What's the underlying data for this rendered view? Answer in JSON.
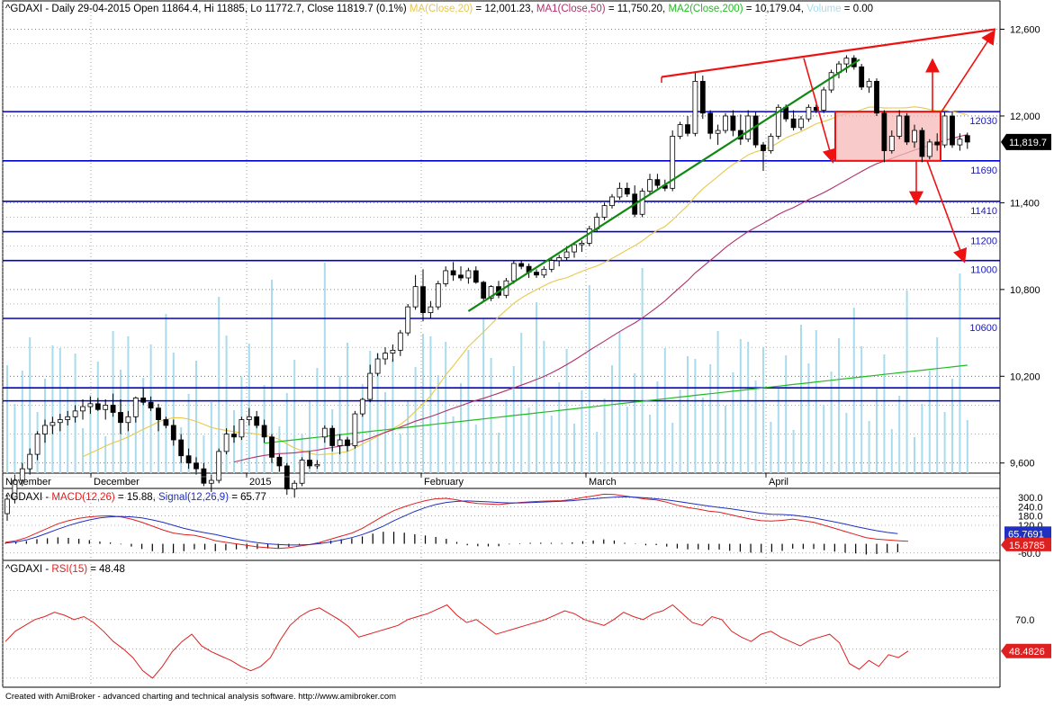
{
  "price_pane": {
    "symbol": "^GDAXI",
    "interval": "Daily",
    "date": "29-04-2015",
    "ohlc_text": "Open 11864.4, Hi 11885, Lo 11772.7, Close 11819.7 (0.1%)",
    "ma20_label": "MA(Close,20)",
    "ma20_value": "= 12,001.23,",
    "ma50_label": "MA1(Close,50)",
    "ma50_value": "= 11,750.20,",
    "ma200_label": "MA2(Close,200)",
    "ma200_value": "= 10,179.04,",
    "volume_label": "Volume",
    "volume_value": "= 0.00",
    "last_price_tag": "11,819.7",
    "y_ticks": [
      "12,600",
      "12,000",
      "11,400",
      "10,800",
      "10,200",
      "9,600"
    ],
    "x_labels": [
      "November",
      "December",
      "2015",
      "February",
      "March",
      "April"
    ],
    "level_labels": [
      "12030",
      "11690",
      "11410",
      "11200",
      "11000",
      "10600"
    ]
  },
  "macd_pane": {
    "title_prefix": "^GDAXI -",
    "macd_label": "MACD(12,26)",
    "macd_value": "= 15.88,",
    "signal_label": "Signal(12,26,9)",
    "signal_value": "= 65.77",
    "y_ticks": [
      "300.0",
      "240.0",
      "180.0",
      "120.0",
      "-60.0"
    ],
    "signal_tag": "65.7691",
    "macd_tag": "15.8785"
  },
  "rsi_pane": {
    "title_prefix": "^GDAXI -",
    "rsi_label": "RSI(15)",
    "rsi_value": "= 48.48",
    "y_ticks": [
      "70.0"
    ],
    "rsi_tag": "48.4826"
  },
  "footer": "Created with AmiBroker - advanced charting and technical analysis software. http://www.amibroker.com",
  "colors": {
    "ma20": "#e8c84a",
    "ma50": "#b0306a",
    "ma200": "#22bb22",
    "macd": "#dd2020",
    "signal": "#2030c0",
    "rsi": "#dd2020",
    "level_lines": "#0000cc",
    "volume": "#a8dcec",
    "trend_green": "#118811",
    "trend_red": "#ee1111",
    "box_fill": "#f6b8b8"
  },
  "chart_data": [
    {
      "type": "candlestick",
      "title": "^GDAXI - Daily",
      "ylim": [
        9530,
        12740
      ],
      "y_scale": "linear",
      "grid": "dotted horizontal and vertical",
      "candles": [
        [
          9250,
          9380,
          9200,
          9350
        ],
        [
          9350,
          9520,
          9320,
          9480
        ],
        [
          9480,
          9600,
          9440,
          9560
        ],
        [
          9560,
          9700,
          9520,
          9660
        ],
        [
          9660,
          9820,
          9620,
          9800
        ],
        [
          9800,
          9900,
          9740,
          9860
        ],
        [
          9860,
          9920,
          9800,
          9880
        ],
        [
          9880,
          9940,
          9820,
          9900
        ],
        [
          9900,
          9960,
          9860,
          9920
        ],
        [
          9920,
          10000,
          9880,
          9960
        ],
        [
          9960,
          10040,
          9900,
          9990
        ],
        [
          9990,
          10060,
          9940,
          10010
        ],
        [
          10010,
          10050,
          9960,
          9970
        ],
        [
          9970,
          10040,
          9900,
          10000
        ],
        [
          10000,
          10080,
          9920,
          9950
        ],
        [
          9950,
          10040,
          9800,
          9880
        ],
        [
          9880,
          9960,
          9820,
          9920
        ],
        [
          9920,
          10060,
          9880,
          10050
        ],
        [
          10050,
          10120,
          10000,
          10020
        ],
        [
          10020,
          10060,
          9960,
          9980
        ],
        [
          9980,
          10010,
          9820,
          9900
        ],
        [
          9900,
          9920,
          9840,
          9860
        ],
        [
          9860,
          9900,
          9720,
          9760
        ],
        [
          9760,
          9800,
          9600,
          9650
        ],
        [
          9650,
          9700,
          9560,
          9600
        ],
        [
          9600,
          9640,
          9520,
          9560
        ],
        [
          9560,
          9600,
          9440,
          9460
        ],
        [
          9460,
          9520,
          9400,
          9480
        ],
        [
          9480,
          9700,
          9460,
          9680
        ],
        [
          9680,
          9840,
          9660,
          9800
        ],
        [
          9800,
          9860,
          9740,
          9780
        ],
        [
          9780,
          9920,
          9760,
          9900
        ],
        [
          9900,
          9980,
          9860,
          9920
        ],
        [
          9920,
          9960,
          9840,
          9860
        ],
        [
          9860,
          9900,
          9740,
          9780
        ],
        [
          9780,
          9800,
          9600,
          9640
        ],
        [
          9640,
          9660,
          9540,
          9580
        ],
        [
          9580,
          9600,
          9380,
          9420
        ],
        [
          9420,
          9480,
          9360,
          9460
        ],
        [
          9460,
          9640,
          9440,
          9620
        ],
        [
          9620,
          9680,
          9560,
          9580
        ],
        [
          9580,
          9620,
          9560,
          9590
        ],
        [
          9780,
          9860,
          9740,
          9840
        ],
        [
          9840,
          9860,
          9680,
          9720
        ],
        [
          9720,
          9800,
          9660,
          9760
        ],
        [
          9760,
          9780,
          9680,
          9720
        ],
        [
          9720,
          9960,
          9700,
          9940
        ],
        [
          9940,
          10050,
          9920,
          10040
        ],
        [
          10040,
          10280,
          10020,
          10220
        ],
        [
          10220,
          10360,
          10200,
          10320
        ],
        [
          10320,
          10400,
          10280,
          10360
        ],
        [
          10360,
          10420,
          10300,
          10380
        ],
        [
          10380,
          10520,
          10340,
          10500
        ],
        [
          10500,
          10700,
          10480,
          10680
        ],
        [
          10680,
          10900,
          10660,
          10820
        ],
        [
          10820,
          10940,
          10580,
          10640
        ],
        [
          10640,
          10720,
          10600,
          10680
        ],
        [
          10680,
          10860,
          10660,
          10840
        ],
        [
          10840,
          10960,
          10820,
          10930
        ],
        [
          10930,
          10990,
          10860,
          10900
        ],
        [
          10900,
          10960,
          10860,
          10880
        ],
        [
          10880,
          10950,
          10840,
          10930
        ],
        [
          10930,
          10960,
          10840,
          10850
        ],
        [
          10850,
          10860,
          10720,
          10740
        ],
        [
          10740,
          10830,
          10720,
          10820
        ],
        [
          10820,
          10860,
          10740,
          10760
        ],
        [
          10760,
          10880,
          10740,
          10860
        ],
        [
          10860,
          11000,
          10840,
          10980
        ],
        [
          10980,
          11000,
          10940,
          10960
        ],
        [
          10960,
          10980,
          10880,
          10920
        ],
        [
          10920,
          10940,
          10880,
          10900
        ],
        [
          10900,
          10960,
          10880,
          10940
        ],
        [
          10940,
          11020,
          10920,
          11000
        ],
        [
          11000,
          11040,
          10960,
          11020
        ],
        [
          11020,
          11100,
          11000,
          11060
        ],
        [
          11060,
          11120,
          11020,
          11110
        ],
        [
          11110,
          11140,
          11060,
          11120
        ],
        [
          11120,
          11240,
          11100,
          11220
        ],
        [
          11220,
          11330,
          11200,
          11300
        ],
        [
          11300,
          11400,
          11280,
          11380
        ],
        [
          11380,
          11460,
          11360,
          11440
        ],
        [
          11440,
          11540,
          11420,
          11500
        ],
        [
          11500,
          11540,
          11440,
          11460
        ],
        [
          11460,
          11520,
          11300,
          11320
        ],
        [
          11320,
          11500,
          11300,
          11480
        ],
        [
          11480,
          11600,
          11460,
          11560
        ],
        [
          11560,
          11600,
          11500,
          11520
        ],
        [
          11520,
          11560,
          11480,
          11500
        ],
        [
          11500,
          11900,
          11480,
          11860
        ],
        [
          11860,
          11960,
          11840,
          11940
        ],
        [
          11940,
          12000,
          11860,
          11880
        ],
        [
          11880,
          12300,
          11860,
          12240
        ],
        [
          12240,
          12280,
          11980,
          12020
        ],
        [
          12020,
          12040,
          11840,
          11880
        ],
        [
          11880,
          11940,
          11800,
          11900
        ],
        [
          11900,
          12020,
          11880,
          12000
        ],
        [
          12000,
          12040,
          11860,
          11900
        ],
        [
          11900,
          12010,
          11800,
          11840
        ],
        [
          11840,
          12040,
          11820,
          12000
        ],
        [
          12000,
          12030,
          11780,
          11800
        ],
        [
          11800,
          11820,
          11620,
          11760
        ],
        [
          11760,
          11880,
          11740,
          11860
        ],
        [
          11860,
          12080,
          11840,
          12060
        ],
        [
          12060,
          12080,
          11960,
          11980
        ],
        [
          11980,
          12040,
          11900,
          11920
        ],
        [
          11920,
          12000,
          11900,
          11980
        ],
        [
          11980,
          12080,
          11960,
          12060
        ],
        [
          12060,
          12080,
          12020,
          12040
        ],
        [
          12040,
          12200,
          12020,
          12180
        ],
        [
          12180,
          12320,
          12160,
          12300
        ],
        [
          12300,
          12380,
          12260,
          12360
        ],
        [
          12360,
          12420,
          12300,
          12400
        ],
        [
          12400,
          12420,
          12320,
          12340
        ],
        [
          12340,
          12360,
          12180,
          12200
        ],
        [
          12200,
          12260,
          12160,
          12240
        ],
        [
          12240,
          12260,
          12000,
          12020
        ],
        [
          12020,
          12040,
          11680,
          11760
        ],
        [
          11760,
          11900,
          11740,
          11860
        ],
        [
          11860,
          12040,
          11840,
          12000
        ],
        [
          12000,
          12020,
          11800,
          11820
        ],
        [
          11820,
          11940,
          11780,
          11900
        ],
        [
          11900,
          11920,
          11680,
          11720
        ],
        [
          11720,
          11840,
          11700,
          11820
        ],
        [
          11820,
          11880,
          11760,
          11800
        ],
        [
          11800,
          12030,
          11780,
          12000
        ],
        [
          12000,
          12030,
          11780,
          11800
        ],
        [
          11800,
          11880,
          11760,
          11840
        ],
        [
          11864.4,
          11885,
          11772.7,
          11819.7
        ]
      ]
    },
    {
      "type": "line",
      "title": "MACD(12,26)",
      "ylim": [
        -90,
        330
      ],
      "series": [
        {
          "name": "MACD(12,26)",
          "values": [
            10,
            20,
            40,
            70,
            100,
            130,
            150,
            165,
            175,
            180,
            182,
            175,
            160,
            140,
            115,
            90,
            70,
            60,
            55,
            40,
            20,
            10,
            0,
            -10,
            -20,
            -25,
            -30,
            -25,
            -15,
            -5,
            10,
            30,
            50,
            70,
            100,
            140,
            180,
            215,
            240,
            262,
            280,
            292,
            295,
            285,
            270,
            262,
            258,
            255,
            262,
            268,
            272,
            276,
            278,
            280,
            288,
            300,
            310,
            322,
            320,
            310,
            300,
            290,
            285,
            270,
            250,
            235,
            225,
            212,
            205,
            190,
            175,
            160,
            150,
            148,
            152,
            160,
            150,
            140,
            120,
            100,
            80,
            60,
            40,
            30,
            25,
            20,
            15.88
          ]
        },
        {
          "name": "Signal(12,26,9)",
          "values": [
            5,
            12,
            25,
            45,
            70,
            95,
            118,
            138,
            155,
            168,
            175,
            178,
            175,
            168,
            155,
            140,
            120,
            100,
            85,
            72,
            60,
            45,
            30,
            18,
            8,
            0,
            -5,
            -8,
            -8,
            -5,
            2,
            12,
            25,
            40,
            60,
            85,
            115,
            150,
            180,
            210,
            235,
            255,
            268,
            275,
            278,
            275,
            272,
            268,
            265,
            265,
            267,
            270,
            273,
            276,
            280,
            286,
            292,
            298,
            302,
            305,
            302,
            298,
            292,
            285,
            275,
            265,
            255,
            245,
            236,
            228,
            218,
            208,
            198,
            192,
            190,
            186,
            178,
            168,
            155,
            142,
            128,
            112,
            98,
            85,
            74,
            65.77
          ]
        }
      ]
    },
    {
      "type": "line",
      "title": "RSI(15)",
      "ylim": [
        25,
        100
      ],
      "series": [
        {
          "name": "RSI(15)",
          "values": [
            55,
            62,
            66,
            70,
            72,
            75,
            73,
            70,
            72,
            68,
            62,
            55,
            50,
            44,
            35,
            30,
            38,
            48,
            55,
            60,
            52,
            48,
            45,
            42,
            38,
            35,
            38,
            44,
            56,
            66,
            72,
            76,
            78,
            74,
            70,
            65,
            58,
            60,
            62,
            64,
            66,
            70,
            72,
            74,
            77,
            80,
            73,
            68,
            70,
            65,
            60,
            62,
            64,
            66,
            68,
            70,
            73,
            76,
            74,
            70,
            68,
            66,
            70,
            75,
            72,
            70,
            74,
            76,
            80,
            74,
            68,
            66,
            72,
            70,
            62,
            58,
            55,
            60,
            62,
            58,
            55,
            52,
            56,
            58,
            60,
            54,
            40,
            36,
            42,
            38,
            46,
            44,
            48.48
          ]
        }
      ]
    }
  ]
}
